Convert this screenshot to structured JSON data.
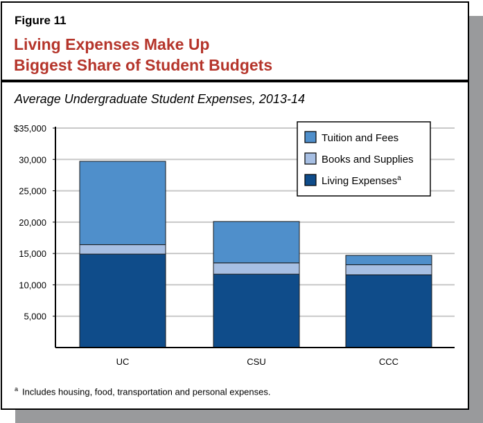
{
  "figure_label": "Figure 11",
  "title_line1": "Living Expenses Make Up",
  "title_line2": "Biggest Share of Student Budgets",
  "subtitle": "Average Undergraduate Student Expenses, 2013-14",
  "footnote_marker": "a",
  "footnote": "Includes housing, food, transportation and personal expenses.",
  "chart_data": {
    "type": "bar",
    "stacked": true,
    "categories": [
      "UC",
      "CSU",
      "CCC"
    ],
    "series": [
      {
        "name": "Living Expenses",
        "superscript": "a",
        "color": "#0f4c8a",
        "values": [
          14900,
          11700,
          11600
        ]
      },
      {
        "name": "Books and Supplies",
        "color": "#a7bfe3",
        "values": [
          1500,
          1800,
          1600
        ]
      },
      {
        "name": "Tuition and Fees",
        "color": "#4f8fcb",
        "values": [
          13300,
          6600,
          1500
        ]
      }
    ],
    "ylim": [
      0,
      35000
    ],
    "yticks": [
      5000,
      10000,
      15000,
      20000,
      25000,
      30000,
      35000
    ],
    "ytick_labels": [
      "5,000",
      "10,000",
      "15,000",
      "20,000",
      "25,000",
      "30,000",
      "$35,000"
    ],
    "grid": true,
    "legend": "top-right",
    "legend_order": [
      "Tuition and Fees",
      "Books and Supplies",
      "Living Expenses"
    ]
  }
}
